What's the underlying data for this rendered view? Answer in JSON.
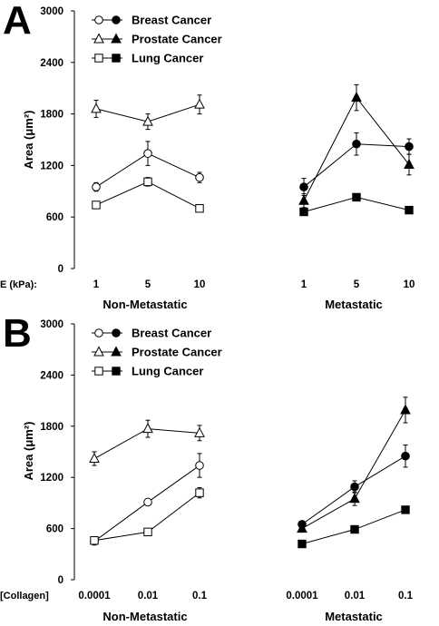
{
  "chart_data": [
    {
      "type": "line",
      "panel_label": "A",
      "ylabel": "Area (μm²)",
      "ylim": [
        0,
        3000
      ],
      "yticks": [
        "0",
        "600",
        "1200",
        "1800",
        "2400",
        "3000"
      ],
      "x_caption": "E (kPa):",
      "categories": [
        "1",
        "5",
        "10"
      ],
      "groups": [
        {
          "name": "Non-Metastatic",
          "series": [
            {
              "name": "Breast Cancer",
              "marker": "circle",
              "filled": false,
              "values": [
                950,
                1340,
                1060
              ],
              "errors": [
                50,
                140,
                60
              ]
            },
            {
              "name": "Prostate Cancer",
              "marker": "triangle",
              "filled": false,
              "values": [
                1860,
                1710,
                1910
              ],
              "errors": [
                100,
                90,
                110
              ]
            },
            {
              "name": "Lung Cancer",
              "marker": "square",
              "filled": false,
              "values": [
                740,
                1010,
                700
              ],
              "errors": [
                40,
                50,
                30
              ]
            }
          ]
        },
        {
          "name": "Metastatic",
          "series": [
            {
              "name": "Breast Cancer",
              "marker": "circle",
              "filled": true,
              "values": [
                950,
                1450,
                1420
              ],
              "errors": [
                100,
                130,
                90
              ]
            },
            {
              "name": "Prostate Cancer",
              "marker": "triangle",
              "filled": true,
              "values": [
                790,
                1990,
                1210
              ],
              "errors": [
                80,
                150,
                120
              ]
            },
            {
              "name": "Lung Cancer",
              "marker": "square",
              "filled": true,
              "values": [
                660,
                830,
                680
              ],
              "errors": [
                20,
                20,
                20
              ]
            }
          ]
        }
      ],
      "legend": [
        "Breast Cancer",
        "Prostate Cancer",
        "Lung Cancer"
      ]
    },
    {
      "type": "line",
      "panel_label": "B",
      "ylabel": "Area (μm²)",
      "ylim": [
        0,
        3000
      ],
      "yticks": [
        "0",
        "600",
        "1200",
        "1800",
        "2400",
        "3000"
      ],
      "x_caption": "[Collagen]",
      "categories": [
        "0.0001",
        "0.01",
        "0.1"
      ],
      "groups": [
        {
          "name": "Non-Metastatic",
          "series": [
            {
              "name": "Breast Cancer",
              "marker": "circle",
              "filled": false,
              "values": [
                450,
                910,
                1340
              ],
              "errors": [
                30,
                30,
                140
              ]
            },
            {
              "name": "Prostate Cancer",
              "marker": "triangle",
              "filled": false,
              "values": [
                1420,
                1770,
                1720
              ],
              "errors": [
                80,
                100,
                90
              ]
            },
            {
              "name": "Lung Cancer",
              "marker": "square",
              "filled": false,
              "values": [
                460,
                560,
                1020
              ],
              "errors": [
                30,
                20,
                60
              ]
            }
          ]
        },
        {
          "name": "Metastatic",
          "series": [
            {
              "name": "Breast Cancer",
              "marker": "circle",
              "filled": true,
              "values": [
                650,
                1090,
                1450
              ],
              "errors": [
                30,
                70,
                130
              ]
            },
            {
              "name": "Prostate Cancer",
              "marker": "triangle",
              "filled": true,
              "values": [
                600,
                950,
                1990
              ],
              "errors": [
                40,
                80,
                150
              ]
            },
            {
              "name": "Lung Cancer",
              "marker": "square",
              "filled": true,
              "values": [
                420,
                590,
                820
              ],
              "errors": [
                20,
                20,
                20
              ]
            }
          ]
        }
      ],
      "legend": [
        "Breast Cancer",
        "Prostate Cancer",
        "Lung Cancer"
      ]
    }
  ]
}
